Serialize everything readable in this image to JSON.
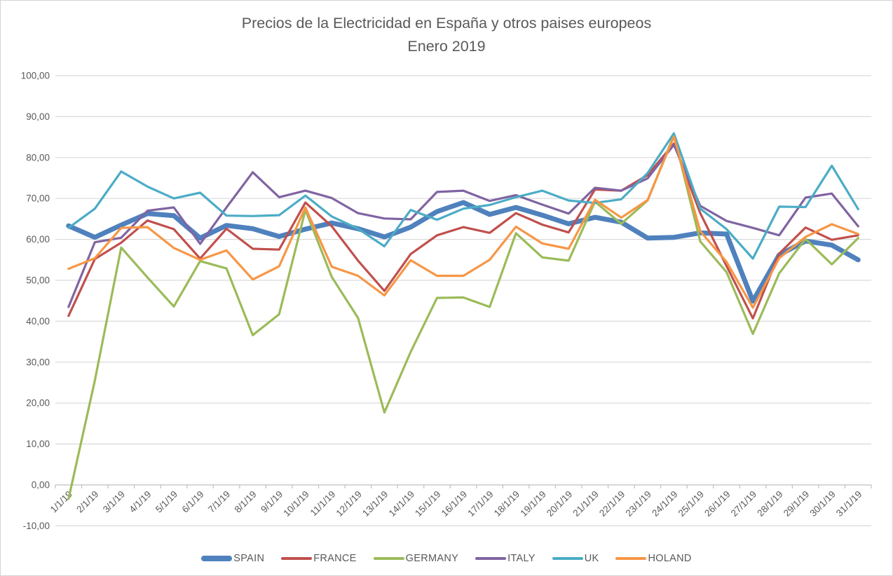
{
  "chart": {
    "title_line1": "Precios de la Electricidad en España y otros paises europeos",
    "title_line2": "Enero 2019"
  },
  "colors": {
    "title_text": "#595959",
    "axis_text": "#595959",
    "gridline": "#d9d9d9",
    "axis_line": "#bfbfbf"
  },
  "chart_data": {
    "type": "line",
    "title": "Precios de la Electricidad en España y otros paises europeos",
    "subtitle": "Enero 2019",
    "xlabel": "",
    "ylabel": "",
    "ylim": [
      -10,
      100
    ],
    "ytick_step": 10,
    "ytick_format": "decimal-comma-2",
    "grid": true,
    "legend_position": "bottom",
    "categories": [
      "1/1/19",
      "2/1/19",
      "3/1/19",
      "4/1/19",
      "5/1/19",
      "6/1/19",
      "7/1/19",
      "8/1/19",
      "9/1/19",
      "10/1/19",
      "11/1/19",
      "12/1/19",
      "13/1/19",
      "14/1/19",
      "15/1/19",
      "16/1/19",
      "17/1/19",
      "18/1/19",
      "19/1/19",
      "20/1/19",
      "21/1/19",
      "22/1/19",
      "23/1/19",
      "24/1/19",
      "25/1/19",
      "26/1/19",
      "27/1/19",
      "28/1/19",
      "29/1/19",
      "30/1/19",
      "31/1/19"
    ],
    "series": [
      {
        "name": "SPAIN",
        "color": "#4F81BD",
        "stroke_width": 7,
        "values": [
          63.3,
          60.5,
          63.5,
          66.3,
          65.8,
          60.3,
          63.4,
          62.6,
          60.7,
          62.5,
          64.0,
          62.6,
          60.6,
          63.0,
          66.8,
          69.0,
          66.1,
          67.8,
          65.9,
          63.8,
          65.4,
          64.2,
          60.3,
          60.5,
          61.6,
          61.3,
          44.9,
          56.2,
          59.6,
          58.6,
          55.0
        ]
      },
      {
        "name": "FRANCE",
        "color": "#C0504D",
        "stroke_width": 3.2,
        "values": [
          41.3,
          55.2,
          59.2,
          64.6,
          62.5,
          55.3,
          62.6,
          57.7,
          57.5,
          69.0,
          63.2,
          54.8,
          47.4,
          56.4,
          61.0,
          63.0,
          61.6,
          66.4,
          63.6,
          61.7,
          72.2,
          71.9,
          75.7,
          83.4,
          66.4,
          53.5,
          40.7,
          56.5,
          62.9,
          59.9,
          61.0
        ]
      },
      {
        "name": "GERMANY",
        "color": "#9BBB59",
        "stroke_width": 3.2,
        "values": [
          -3.4,
          25.5,
          58.0,
          50.7,
          43.6,
          54.7,
          52.9,
          36.6,
          41.7,
          67.2,
          50.8,
          40.8,
          17.7,
          32.5,
          45.7,
          45.8,
          43.5,
          61.5,
          55.6,
          54.8,
          69.2,
          63.8,
          69.5,
          85.5,
          59.5,
          52.0,
          36.9,
          51.7,
          60.1,
          53.9,
          60.3
        ]
      },
      {
        "name": "ITALY",
        "color": "#8064A2",
        "stroke_width": 3.2,
        "values": [
          43.5,
          59.3,
          60.4,
          67.0,
          67.8,
          58.9,
          67.8,
          76.4,
          70.3,
          71.9,
          70.1,
          66.4,
          65.1,
          64.9,
          71.6,
          71.9,
          69.4,
          70.8,
          68.5,
          66.3,
          72.6,
          71.9,
          74.9,
          83.1,
          68.2,
          64.5,
          62.8,
          61.0,
          70.2,
          71.2,
          63.2
        ]
      },
      {
        "name": "UK",
        "color": "#4BACC6",
        "stroke_width": 3.2,
        "values": [
          62.8,
          67.5,
          76.6,
          72.9,
          70.0,
          71.4,
          65.8,
          65.7,
          65.9,
          70.7,
          65.6,
          62.6,
          58.3,
          67.2,
          64.8,
          67.5,
          68.4,
          70.3,
          71.9,
          69.5,
          68.9,
          69.8,
          76.2,
          85.9,
          67.5,
          62.5,
          55.3,
          68.0,
          67.9,
          78.0,
          67.4
        ]
      },
      {
        "name": "HOLAND",
        "color": "#F79646",
        "stroke_width": 3.2,
        "values": [
          52.8,
          55.4,
          62.8,
          63.0,
          57.9,
          55.0,
          57.3,
          50.2,
          53.4,
          67.8,
          53.3,
          51.1,
          46.3,
          54.9,
          51.1,
          51.1,
          55.0,
          63.1,
          59.0,
          57.7,
          69.7,
          65.3,
          69.6,
          85.1,
          62.0,
          54.5,
          43.3,
          55.4,
          60.6,
          63.7,
          61.3
        ]
      }
    ]
  }
}
